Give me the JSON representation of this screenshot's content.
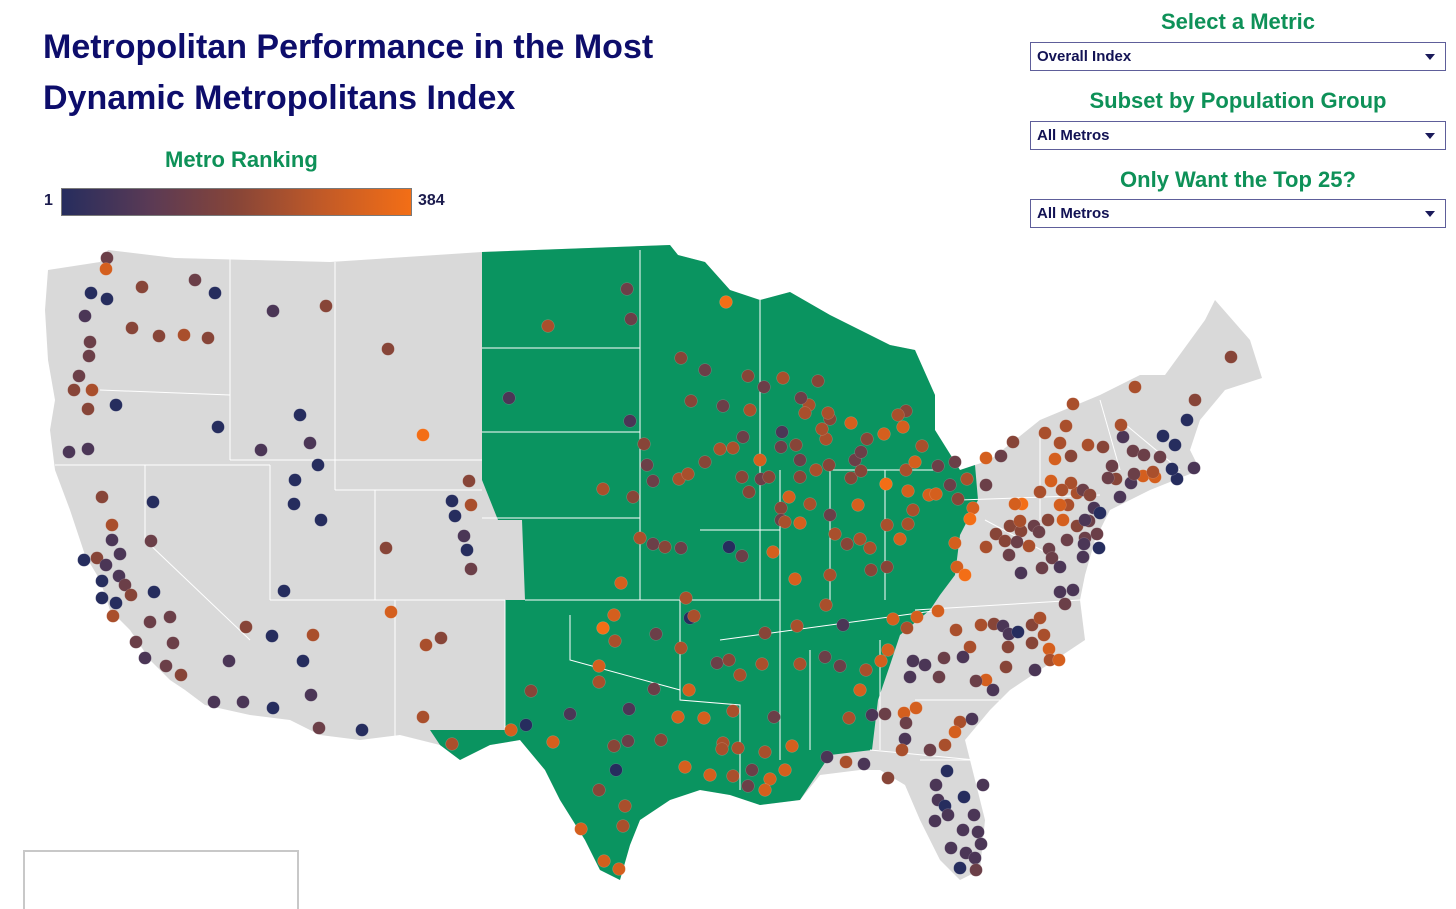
{
  "title": "Metropolitan Performance in the Most Dynamic Metropolitans Index",
  "legend": {
    "title": "Metro Ranking",
    "min_label": "1",
    "max_label": "384",
    "color_low": "#262d5e",
    "color_high": "#f36e16"
  },
  "filters": {
    "metric": {
      "label": "Select a Metric",
      "value": "Overall Index"
    },
    "population": {
      "label": "Subset by Population Group",
      "value": "All Metros"
    },
    "top25": {
      "label": "Only Want the Top 25?",
      "value": "All Metros"
    }
  },
  "map": {
    "land_color": "#d9d9d9",
    "highlight_color": "#0a9460",
    "border_color": "#ffffff",
    "dot_colors": [
      "#262d5e",
      "#4b3656",
      "#6b3f48",
      "#874538",
      "#a94f2c",
      "#d45f1e",
      "#f36e16"
    ]
  }
}
